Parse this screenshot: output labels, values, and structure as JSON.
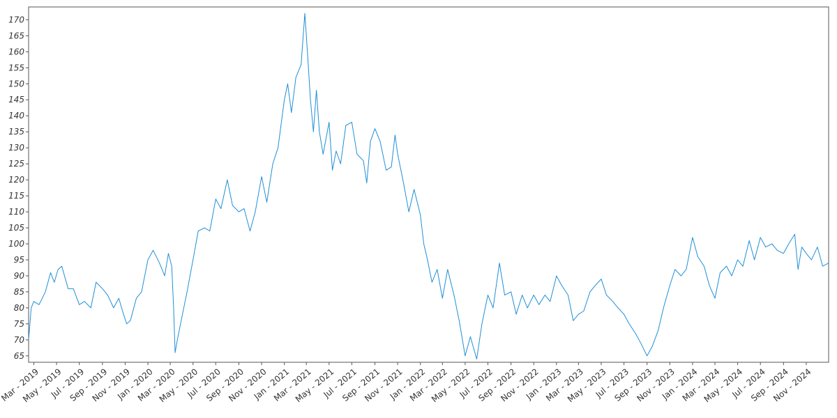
{
  "chart_data": {
    "type": "line",
    "title": "",
    "xlabel": "",
    "ylabel": "",
    "grid": false,
    "legend": false,
    "xlim": [
      "2019-02-15",
      "2024-12-31"
    ],
    "ylim": [
      63,
      174
    ],
    "y_ticks": [
      65,
      70,
      75,
      80,
      85,
      90,
      95,
      100,
      105,
      110,
      115,
      120,
      125,
      130,
      135,
      140,
      145,
      150,
      155,
      160,
      165,
      170
    ],
    "x_ticks": [
      {
        "date": "2019-03-01",
        "label": "Mar - 2019"
      },
      {
        "date": "2019-05-01",
        "label": "May - 2019"
      },
      {
        "date": "2019-07-01",
        "label": "Jul - 2019"
      },
      {
        "date": "2019-09-01",
        "label": "Sep - 2019"
      },
      {
        "date": "2019-11-01",
        "label": "Nov - 2019"
      },
      {
        "date": "2020-01-01",
        "label": "Jan - 2020"
      },
      {
        "date": "2020-03-01",
        "label": "Mar - 2020"
      },
      {
        "date": "2020-05-01",
        "label": "May - 2020"
      },
      {
        "date": "2020-07-01",
        "label": "Jul - 2020"
      },
      {
        "date": "2020-09-01",
        "label": "Sep - 2020"
      },
      {
        "date": "2020-11-01",
        "label": "Nov - 2020"
      },
      {
        "date": "2021-01-01",
        "label": "Jan - 2021"
      },
      {
        "date": "2021-03-01",
        "label": "Mar - 2021"
      },
      {
        "date": "2021-05-01",
        "label": "May - 2021"
      },
      {
        "date": "2021-07-01",
        "label": "Jul - 2021"
      },
      {
        "date": "2021-09-01",
        "label": "Sep - 2021"
      },
      {
        "date": "2021-11-01",
        "label": "Nov - 2021"
      },
      {
        "date": "2022-01-01",
        "label": "Jan - 2022"
      },
      {
        "date": "2022-03-01",
        "label": "Mar - 2022"
      },
      {
        "date": "2022-05-01",
        "label": "May - 2022"
      },
      {
        "date": "2022-07-01",
        "label": "Jul - 2022"
      },
      {
        "date": "2022-09-01",
        "label": "Sep - 2022"
      },
      {
        "date": "2022-11-01",
        "label": "Nov - 2022"
      },
      {
        "date": "2023-01-01",
        "label": "Jan - 2023"
      },
      {
        "date": "2023-03-01",
        "label": "Mar - 2023"
      },
      {
        "date": "2023-05-01",
        "label": "May - 2023"
      },
      {
        "date": "2023-07-01",
        "label": "Jul - 2023"
      },
      {
        "date": "2023-09-01",
        "label": "Sep - 2023"
      },
      {
        "date": "2023-11-01",
        "label": "Nov - 2023"
      },
      {
        "date": "2024-01-01",
        "label": "Jan - 2024"
      },
      {
        "date": "2024-03-01",
        "label": "Mar - 2024"
      },
      {
        "date": "2024-05-01",
        "label": "May - 2024"
      },
      {
        "date": "2024-07-01",
        "label": "Jul - 2024"
      },
      {
        "date": "2024-09-01",
        "label": "Sep - 2024"
      },
      {
        "date": "2024-11-01",
        "label": "Nov - 2024"
      }
    ],
    "series": [
      {
        "color": "#1f8fd6",
        "points": [
          [
            "2019-02-15",
            70
          ],
          [
            "2019-02-22",
            80
          ],
          [
            "2019-03-01",
            82
          ],
          [
            "2019-03-15",
            81
          ],
          [
            "2019-04-01",
            85
          ],
          [
            "2019-04-15",
            91
          ],
          [
            "2019-04-25",
            88
          ],
          [
            "2019-05-05",
            92
          ],
          [
            "2019-05-15",
            93
          ],
          [
            "2019-06-01",
            86
          ],
          [
            "2019-06-15",
            86
          ],
          [
            "2019-07-01",
            81
          ],
          [
            "2019-07-15",
            82
          ],
          [
            "2019-08-01",
            80
          ],
          [
            "2019-08-15",
            88
          ],
          [
            "2019-09-01",
            86
          ],
          [
            "2019-09-15",
            84
          ],
          [
            "2019-10-01",
            80
          ],
          [
            "2019-10-15",
            83
          ],
          [
            "2019-10-25",
            79
          ],
          [
            "2019-11-05",
            75
          ],
          [
            "2019-11-15",
            76
          ],
          [
            "2019-12-01",
            83
          ],
          [
            "2019-12-15",
            85
          ],
          [
            "2020-01-01",
            95
          ],
          [
            "2020-01-15",
            98
          ],
          [
            "2020-02-01",
            94
          ],
          [
            "2020-02-15",
            90
          ],
          [
            "2020-02-25",
            97
          ],
          [
            "2020-03-05",
            93
          ],
          [
            "2020-03-10",
            80
          ],
          [
            "2020-03-14",
            66
          ],
          [
            "2020-03-20",
            70
          ],
          [
            "2020-04-01",
            77
          ],
          [
            "2020-04-15",
            85
          ],
          [
            "2020-05-01",
            95
          ],
          [
            "2020-05-15",
            104
          ],
          [
            "2020-06-01",
            105
          ],
          [
            "2020-06-15",
            104
          ],
          [
            "2020-07-01",
            114
          ],
          [
            "2020-07-15",
            111
          ],
          [
            "2020-08-01",
            120
          ],
          [
            "2020-08-15",
            112
          ],
          [
            "2020-09-01",
            110
          ],
          [
            "2020-09-15",
            111
          ],
          [
            "2020-10-01",
            104
          ],
          [
            "2020-10-15",
            110
          ],
          [
            "2020-11-01",
            121
          ],
          [
            "2020-11-15",
            113
          ],
          [
            "2020-12-01",
            125
          ],
          [
            "2020-12-15",
            130
          ],
          [
            "2021-01-01",
            145
          ],
          [
            "2021-01-10",
            150
          ],
          [
            "2021-01-20",
            141
          ],
          [
            "2021-02-01",
            152
          ],
          [
            "2021-02-15",
            156
          ],
          [
            "2021-02-25",
            172
          ],
          [
            "2021-03-05",
            158
          ],
          [
            "2021-03-12",
            145
          ],
          [
            "2021-03-20",
            135
          ],
          [
            "2021-03-28",
            148
          ],
          [
            "2021-04-05",
            135
          ],
          [
            "2021-04-15",
            128
          ],
          [
            "2021-05-01",
            138
          ],
          [
            "2021-05-10",
            123
          ],
          [
            "2021-05-20",
            129
          ],
          [
            "2021-06-01",
            125
          ],
          [
            "2021-06-15",
            137
          ],
          [
            "2021-07-01",
            138
          ],
          [
            "2021-07-15",
            128
          ],
          [
            "2021-08-01",
            126
          ],
          [
            "2021-08-10",
            119
          ],
          [
            "2021-08-20",
            132
          ],
          [
            "2021-09-01",
            136
          ],
          [
            "2021-09-15",
            132
          ],
          [
            "2021-10-01",
            123
          ],
          [
            "2021-10-15",
            124
          ],
          [
            "2021-10-25",
            134
          ],
          [
            "2021-11-01",
            128
          ],
          [
            "2021-11-15",
            120
          ],
          [
            "2021-12-01",
            110
          ],
          [
            "2021-12-15",
            117
          ],
          [
            "2022-01-01",
            109
          ],
          [
            "2022-01-10",
            100
          ],
          [
            "2022-01-20",
            95
          ],
          [
            "2022-02-01",
            88
          ],
          [
            "2022-02-15",
            92
          ],
          [
            "2022-03-01",
            83
          ],
          [
            "2022-03-15",
            92
          ],
          [
            "2022-04-01",
            84
          ],
          [
            "2022-04-15",
            76
          ],
          [
            "2022-05-01",
            65
          ],
          [
            "2022-05-15",
            71
          ],
          [
            "2022-06-01",
            64
          ],
          [
            "2022-06-15",
            75
          ],
          [
            "2022-07-01",
            84
          ],
          [
            "2022-07-15",
            80
          ],
          [
            "2022-08-01",
            94
          ],
          [
            "2022-08-15",
            84
          ],
          [
            "2022-09-01",
            85
          ],
          [
            "2022-09-15",
            78
          ],
          [
            "2022-10-01",
            84
          ],
          [
            "2022-10-15",
            80
          ],
          [
            "2022-11-01",
            84
          ],
          [
            "2022-11-15",
            81
          ],
          [
            "2022-12-01",
            84
          ],
          [
            "2022-12-15",
            82
          ],
          [
            "2023-01-01",
            90
          ],
          [
            "2023-01-15",
            87
          ],
          [
            "2023-02-01",
            84
          ],
          [
            "2023-02-15",
            76
          ],
          [
            "2023-03-01",
            78
          ],
          [
            "2023-03-15",
            79
          ],
          [
            "2023-04-01",
            85
          ],
          [
            "2023-04-15",
            87
          ],
          [
            "2023-05-01",
            89
          ],
          [
            "2023-05-15",
            84
          ],
          [
            "2023-06-01",
            82
          ],
          [
            "2023-06-15",
            80
          ],
          [
            "2023-07-01",
            78
          ],
          [
            "2023-07-15",
            75
          ],
          [
            "2023-08-01",
            72
          ],
          [
            "2023-08-15",
            69
          ],
          [
            "2023-09-01",
            65
          ],
          [
            "2023-09-15",
            68
          ],
          [
            "2023-10-01",
            73
          ],
          [
            "2023-10-15",
            80
          ],
          [
            "2023-11-01",
            87
          ],
          [
            "2023-11-15",
            92
          ],
          [
            "2023-12-01",
            90
          ],
          [
            "2023-12-15",
            92
          ],
          [
            "2024-01-01",
            102
          ],
          [
            "2024-01-15",
            96
          ],
          [
            "2024-02-01",
            93
          ],
          [
            "2024-02-15",
            87
          ],
          [
            "2024-03-01",
            83
          ],
          [
            "2024-03-15",
            91
          ],
          [
            "2024-04-01",
            93
          ],
          [
            "2024-04-15",
            90
          ],
          [
            "2024-05-01",
            95
          ],
          [
            "2024-05-15",
            93
          ],
          [
            "2024-06-01",
            101
          ],
          [
            "2024-06-15",
            95
          ],
          [
            "2024-07-01",
            102
          ],
          [
            "2024-07-15",
            99
          ],
          [
            "2024-08-01",
            100
          ],
          [
            "2024-08-15",
            98
          ],
          [
            "2024-09-01",
            97
          ],
          [
            "2024-09-15",
            100
          ],
          [
            "2024-10-01",
            103
          ],
          [
            "2024-10-10",
            92
          ],
          [
            "2024-10-20",
            99
          ],
          [
            "2024-11-01",
            97
          ],
          [
            "2024-11-15",
            95
          ],
          [
            "2024-12-01",
            99
          ],
          [
            "2024-12-15",
            93
          ],
          [
            "2024-12-31",
            94
          ]
        ]
      }
    ]
  }
}
